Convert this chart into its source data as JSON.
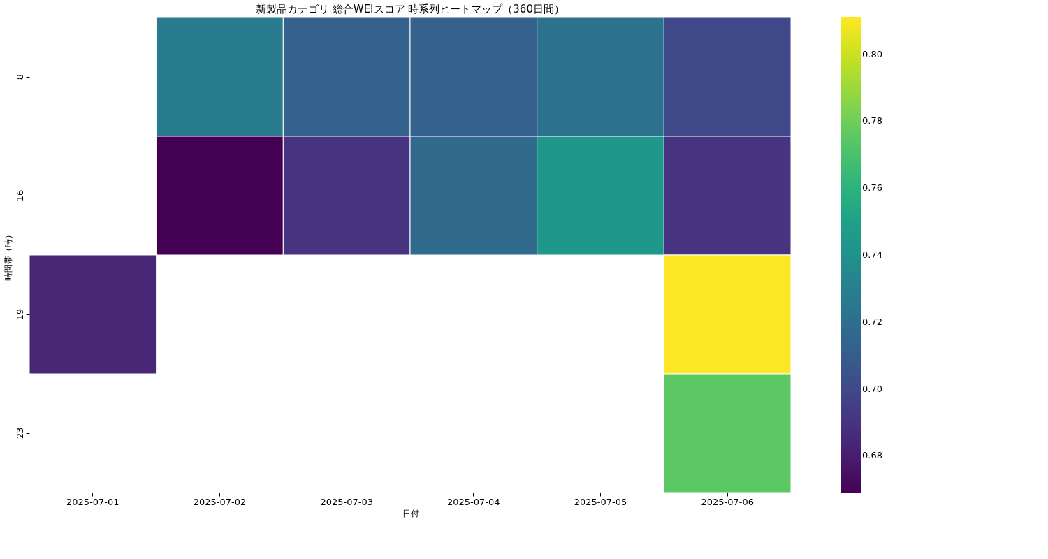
{
  "chart_data": {
    "type": "heatmap",
    "title": "新製品カテゴリ 総合WEIスコア 時系列ヒートマップ（360日間）",
    "xlabel": "日付",
    "ylabel": "時間帯（時）",
    "categories": [
      "2025-07-01",
      "2025-07-02",
      "2025-07-03",
      "2025-07-04",
      "2025-07-05",
      "2025-07-06"
    ],
    "y_categories": [
      "8",
      "16",
      "19",
      "23"
    ],
    "cells": [
      [
        null,
        0.728,
        0.713,
        0.712,
        0.722,
        0.7
      ],
      [
        null,
        0.669,
        0.69,
        0.718,
        0.745,
        0.69
      ],
      [
        0.684,
        null,
        null,
        null,
        null,
        0.811
      ],
      [
        null,
        null,
        null,
        null,
        null,
        0.775
      ]
    ],
    "clim": [
      0.669,
      0.811
    ],
    "cticks": [
      0.68,
      {
        "value": 0.7,
        "label": "0.70"
      },
      0.72,
      0.74,
      0.76,
      0.78,
      {
        "value": 0.8,
        "label": "0.80"
      }
    ]
  }
}
